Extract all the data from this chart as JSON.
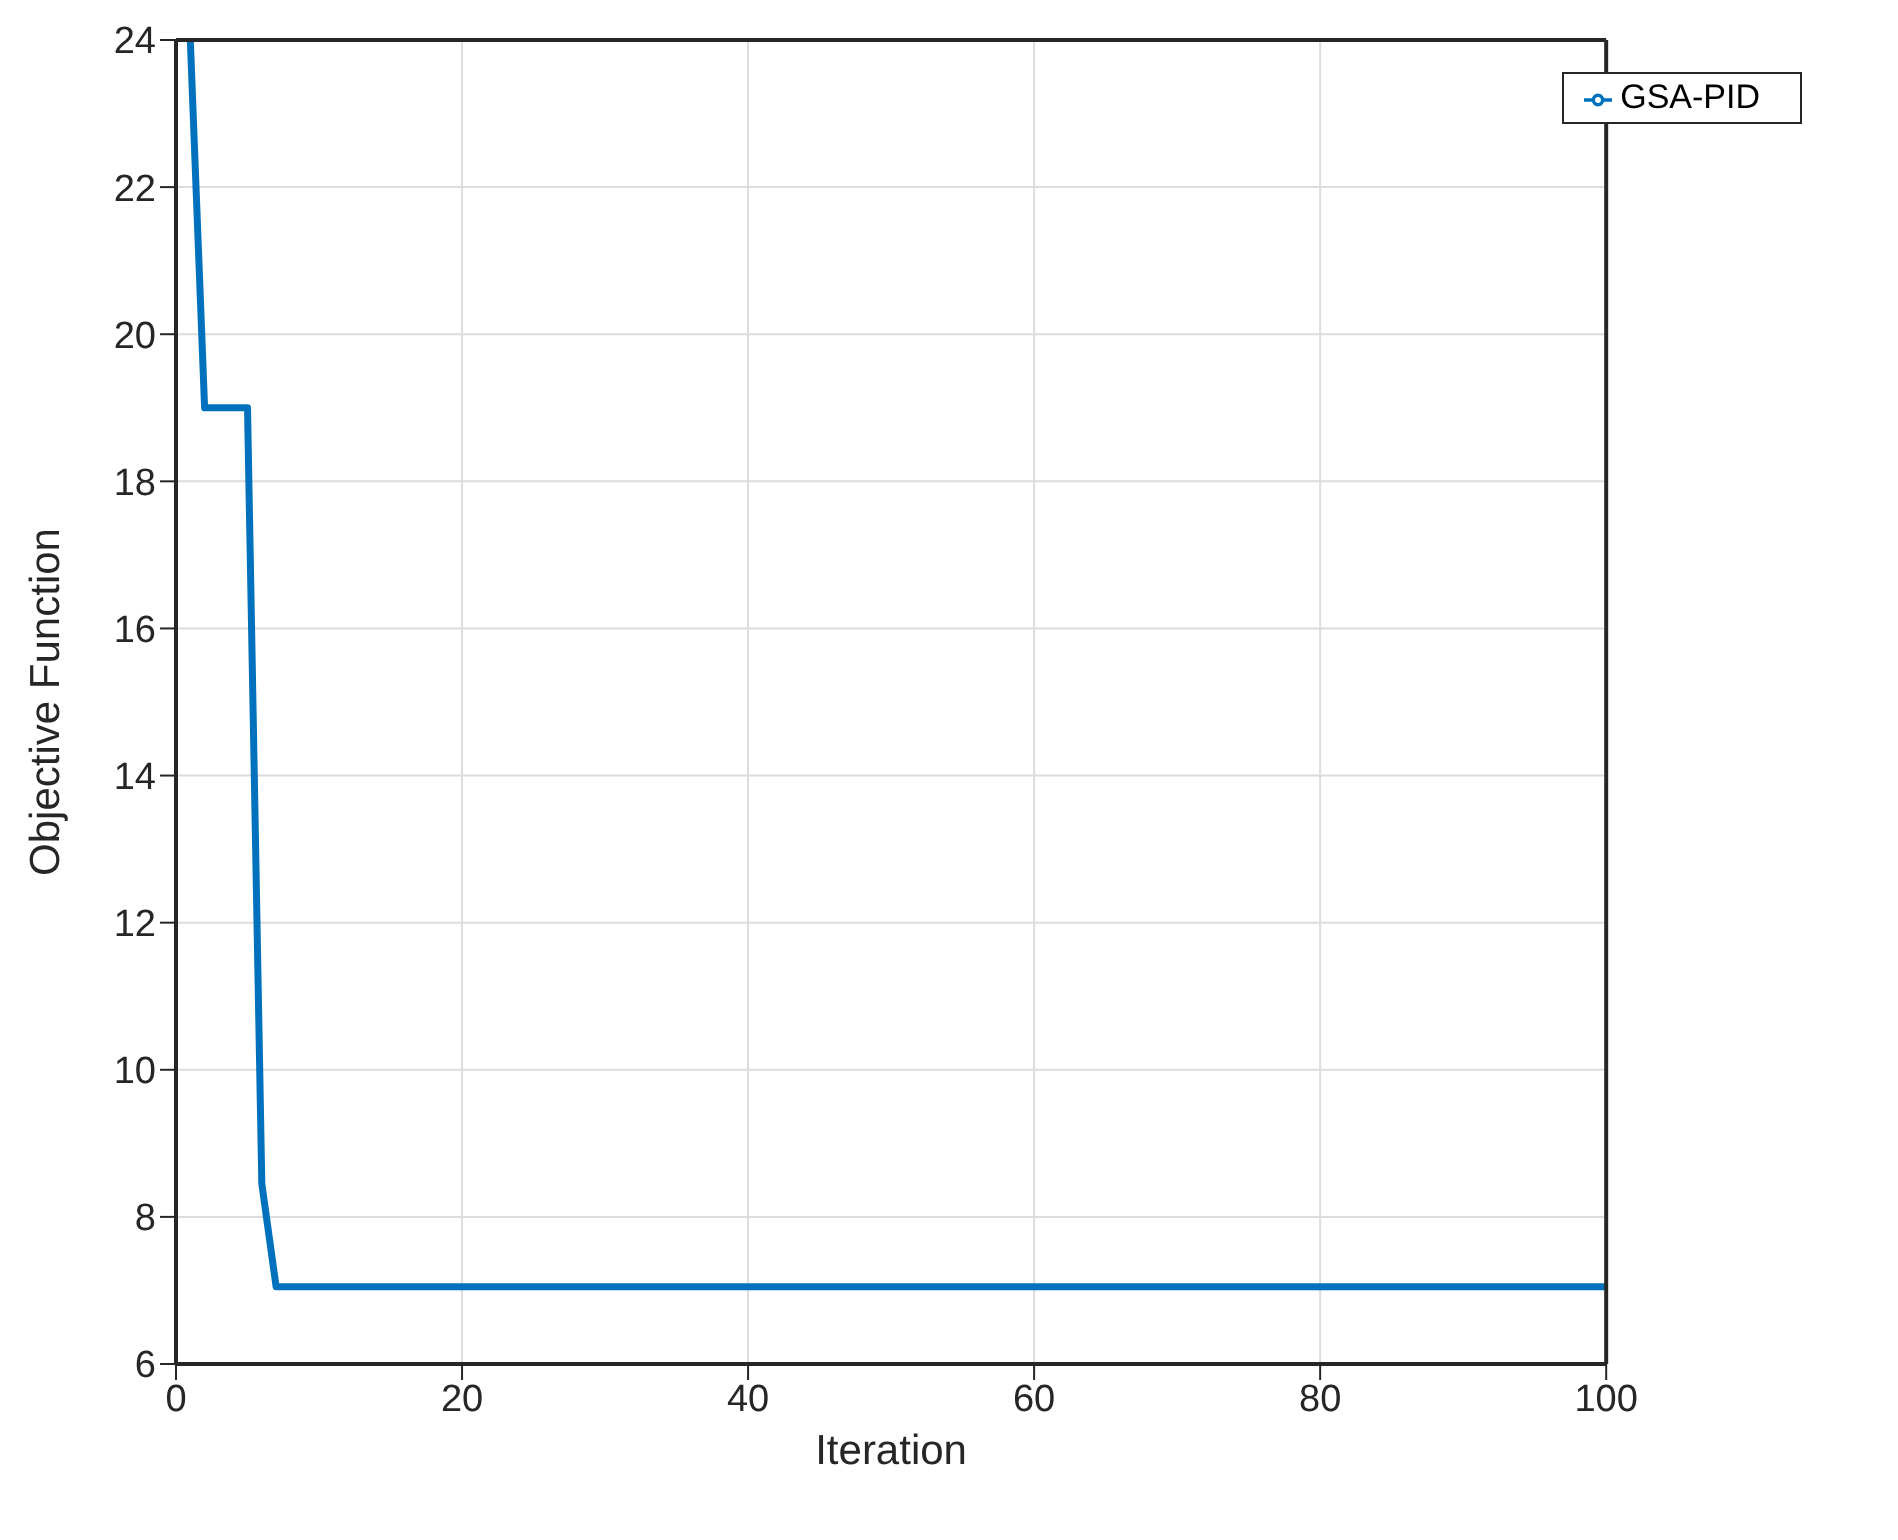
{
  "chart_data": {
    "type": "line",
    "xlabel": "Iteration",
    "ylabel": "Objective Function",
    "x": [
      1,
      2,
      5,
      6,
      7,
      100
    ],
    "series": [
      {
        "name": "GSA-PID",
        "color": "#0072bd",
        "values": [
          24,
          19,
          19,
          8.45,
          7.05,
          7.05
        ]
      }
    ],
    "xlim": [
      0,
      100
    ],
    "xticks": [
      0,
      20,
      40,
      60,
      80,
      100
    ],
    "ylim": [
      6,
      24
    ],
    "yticks": [
      6,
      8,
      10,
      12,
      14,
      16,
      18,
      20,
      22,
      24
    ],
    "grid": true,
    "legend": "top right",
    "marker": "none",
    "line_style": "solid"
  }
}
